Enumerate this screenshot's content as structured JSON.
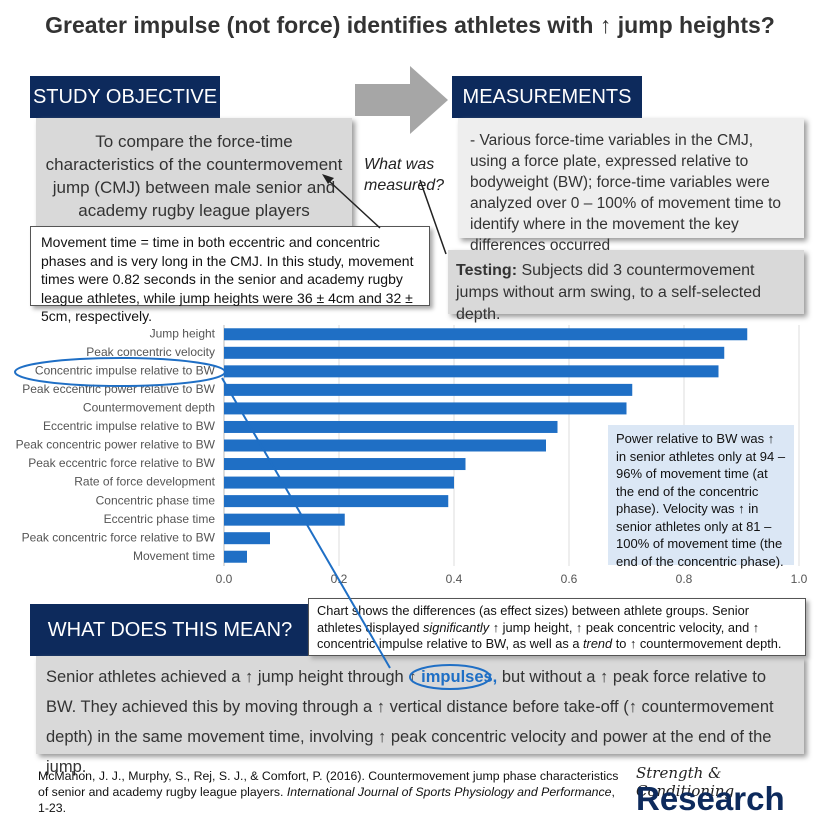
{
  "title": "Greater impulse (not force) identifies athletes with ↑ jump heights?",
  "objective": {
    "heading": "STUDY OBJECTIVE",
    "text": "To compare the force-time characteristics of the countermovement jump (CMJ) between male senior and academy rugby league players"
  },
  "question": "What was measured?",
  "measurements": {
    "heading": "MEASUREMENTS",
    "text": "- Various force-time variables in the CMJ, using a force plate, expressed relative to bodyweight (BW); force-time variables were analyzed over 0 – 100% of movement time to identify where in the movement the key differences occurred"
  },
  "movement_note": "Movement time = time in both eccentric and concentric phases and is very long in the CMJ. In this study, movement times were 0.82 seconds in the senior and academy rugby league athletes, while jump heights were 36 ± 4cm and 32 ± 5cm, respectively.",
  "testing": {
    "label": "Testing:",
    "text": " Subjects did 3 countermovement jumps without arm swing, to a self-selected depth."
  },
  "power_note": "Power relative to BW was ↑ in senior athletes only at 94 – 96% of movement time (at the end of the concentric phase). Velocity was ↑ in senior athletes only at 81 – 100% of movement time (the end of the concentric phase).",
  "chart_note": [
    "Chart shows the differences (as effect sizes) between athlete groups. Senior athletes displayed ",
    "significantly",
    " ↑ jump height, ↑ peak concentric velocity, and ↑ concentric impulse relative to BW, as well as a ",
    "trend",
    " to ↑ countermovement depth."
  ],
  "meaning": {
    "heading": "WHAT DOES THIS MEAN?",
    "text": [
      "Senior athletes achieved a ↑ jump height through ↑ ",
      "impulses,",
      " but without a ↑ peak force relative to BW. They achieved this by moving through a ↑ vertical distance before take-off (↑ countermovement depth) in the same movement time, involving ↑ peak concentric velocity and power at the end of the jump."
    ]
  },
  "citation": [
    "McMahon, J. J., Murphy, S., Rej, S. J., & Comfort, P. (2016). Countermovement jump phase characteristics of senior and academy rugby league players. ",
    "International Journal of Sports Physiology and Performance",
    ", 1-23."
  ],
  "brand": {
    "line1": "Strength & Conditioning",
    "line2": "Research"
  },
  "chart_data": {
    "type": "barh",
    "categories": [
      "Jump height",
      "Peak concentric velocity",
      "Concentric impulse relative to BW",
      "Peak eccentric power relative to BW",
      "Countermovement depth",
      "Eccentric impulse relative to BW",
      "Peak concentric power relative to BW",
      "Peak eccentric force relative to BW",
      "Rate of force development",
      "Concentric phase time",
      "Eccentric phase time",
      "Peak concentric force relative to BW",
      "Movement time"
    ],
    "values": [
      0.91,
      0.87,
      0.86,
      0.71,
      0.7,
      0.58,
      0.56,
      0.42,
      0.4,
      0.39,
      0.21,
      0.08,
      0.04
    ],
    "color": "#1f6fc5",
    "xlim": [
      0,
      1
    ],
    "xticks": [
      {
        "value": 0,
        "label": "0.0"
      },
      0.2,
      0.4,
      0.6,
      0.8,
      {
        "value": 1,
        "label": "1.0"
      }
    ],
    "grid": true
  }
}
